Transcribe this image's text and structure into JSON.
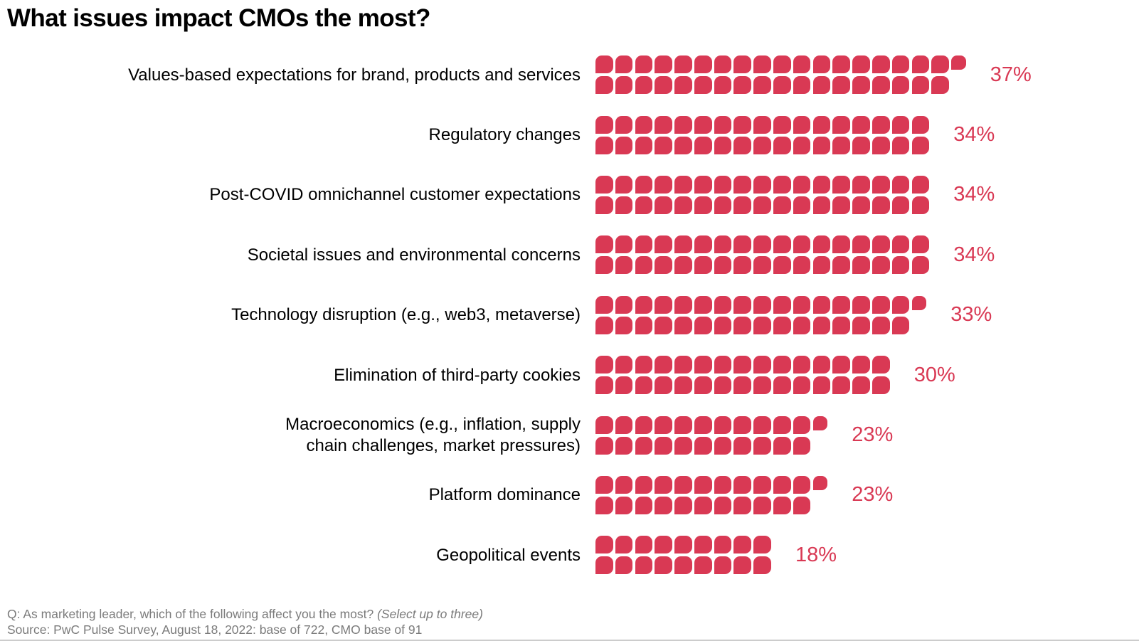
{
  "title": "What issues impact CMOs the most?",
  "footer": {
    "question": "Q: As marketing leader, which of the following affect you the most?",
    "instruction": "(Select up to three)",
    "source": "Source: PwC Pulse Survey, August 18, 2022: base of 722, CMO base of 91"
  },
  "colors": {
    "block": "#d93954",
    "value_label": "#d93954",
    "category_label": "#000000",
    "footer_text": "#7b7b7b",
    "bottom_rule": "#cccccc"
  },
  "chart_data": {
    "type": "bar",
    "subtype": "pictogram",
    "orientation": "horizontal",
    "unit": "1 block = 1%",
    "block_rows_per_bar": 2,
    "title": "What issues impact CMOs the most?",
    "xlabel": "",
    "ylabel": "",
    "legend": "none",
    "grid": false,
    "categories": [
      "Values-based expectations for brand, products and services",
      "Regulatory changes",
      "Post-COVID omnichannel customer expectations",
      "Societal issues and environmental concerns",
      "Technology disruption (e.g., web3, metaverse)",
      "Elimination of third-party cookies",
      "Macroeconomics (e.g., inflation, supply\nchain challenges, market pressures)",
      "Platform dominance",
      "Geopolitical events"
    ],
    "values": [
      37,
      34,
      34,
      34,
      33,
      30,
      23,
      23,
      18
    ],
    "value_labels": [
      "37%",
      "34%",
      "34%",
      "34%",
      "33%",
      "30%",
      "23%",
      "23%",
      "18%"
    ]
  }
}
